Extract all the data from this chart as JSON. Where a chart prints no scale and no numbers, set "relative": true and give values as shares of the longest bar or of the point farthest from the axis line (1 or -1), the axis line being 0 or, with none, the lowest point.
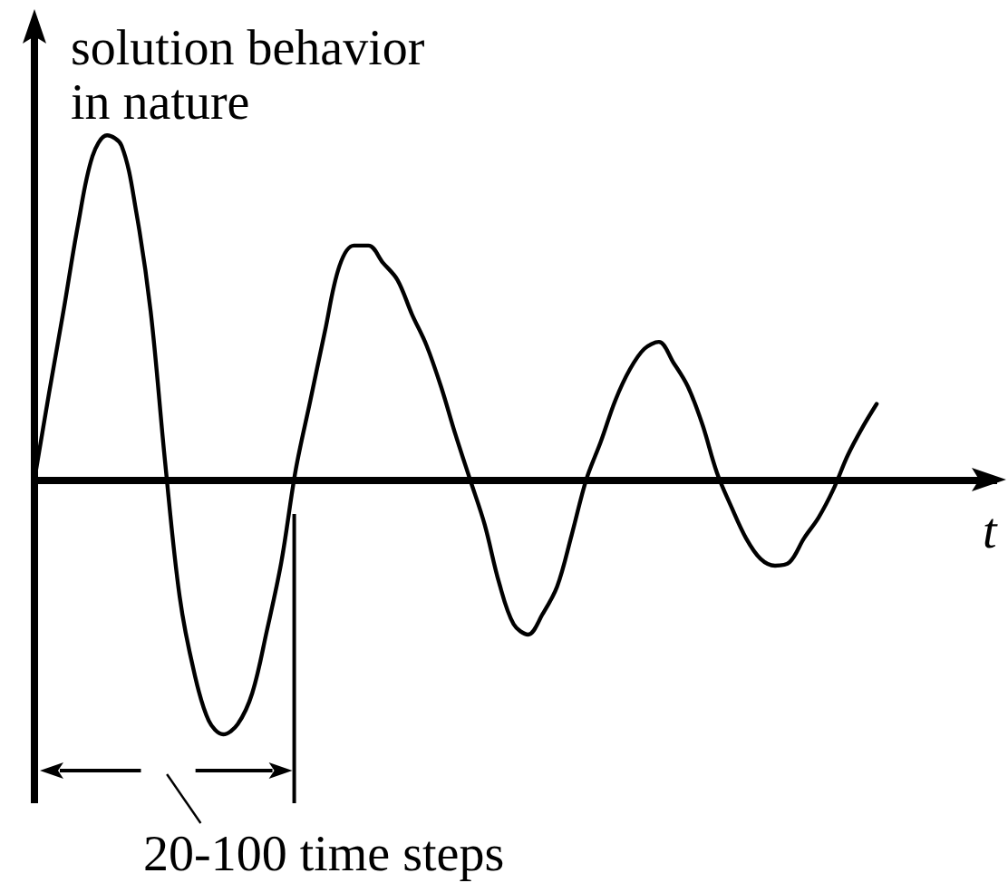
{
  "chart_data": {
    "type": "line",
    "relative": true,
    "ylabel": "solution behavior in nature",
    "xlabel": "t",
    "annotations": [
      "20-100 time steps"
    ],
    "color": "#000000",
    "categories": [
      null,
      null,
      null,
      null,
      null,
      null,
      null,
      null,
      null,
      null,
      null,
      null,
      null,
      null,
      null,
      null,
      null,
      null,
      null,
      null,
      null,
      null,
      null,
      null,
      null,
      null,
      null,
      null,
      null,
      null,
      null,
      null,
      null,
      null,
      null,
      null,
      null,
      null,
      null,
      null,
      null,
      null,
      null,
      null,
      null,
      null,
      null,
      null,
      null,
      null,
      null,
      null,
      null,
      null,
      null,
      null,
      null,
      null,
      null
    ],
    "values": [
      0,
      0.25,
      0.49,
      0.74,
      0.94,
      1,
      0.97,
      0.78,
      0.49,
      0.05,
      -0.34,
      -0.56,
      -0.7,
      -0.74,
      -0.71,
      -0.62,
      -0.44,
      -0.24,
      0.03,
      0.23,
      0.43,
      0.62,
      0.68,
      0.68,
      0.63,
      0.58,
      0.48,
      0.39,
      0.27,
      0.13,
      0,
      -0.13,
      -0.3,
      -0.42,
      -0.45,
      -0.39,
      -0.31,
      -0.16,
      0,
      0.11,
      0.23,
      0.32,
      0.38,
      0.4,
      0.34,
      0.27,
      0.16,
      0.02,
      -0.08,
      -0.17,
      -0.23,
      -0.25,
      -0.24,
      -0.17,
      -0.11,
      -0.03,
      0.07,
      0.15,
      0.22
    ]
  }
}
